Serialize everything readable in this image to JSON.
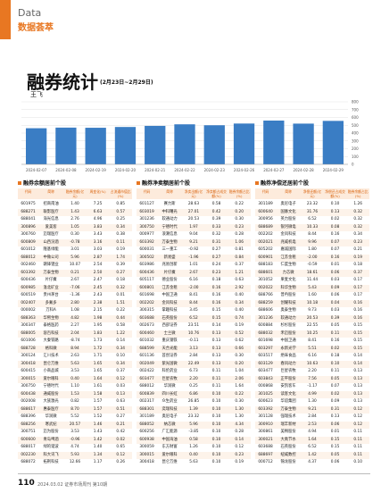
{
  "header": {
    "section": "Data",
    "section_cn": "数据荟萃"
  },
  "article": {
    "title": "融券统计",
    "date_range": "(2月23日~2月29日)",
    "author": "王飞"
  },
  "chart_data": {
    "type": "bar",
    "color": "#3a7dc4",
    "categories": [
      "2024-02-07",
      "2024-02-08",
      "2024-02-19",
      "2024-02-20",
      "2024-02-21",
      "2024-02-22",
      "2024-02-23",
      "2024-02-26",
      "2024-02-27",
      "2024-02-28",
      "2024-02-29"
    ],
    "values": [
      462,
      470,
      468,
      478,
      492,
      512,
      500,
      522,
      560,
      521,
      556
    ],
    "ylim": [
      0,
      800
    ],
    "yticks": [
      0,
      100,
      200,
      300,
      400,
      500,
      600,
      700,
      800
    ],
    "grid": true
  },
  "tables": [
    {
      "title": "融券余额居前个股",
      "headers": [
        "代码",
        "简称",
        "融券余额(亿元)",
        "周变化(%)",
        "占流通市值比(%)"
      ],
      "rows": [
        [
          "601975",
          "招商南油",
          "1.40",
          "7.25",
          "0.85"
        ],
        [
          "688271",
          "联影医疗",
          "1.43",
          "6.63",
          "0.57"
        ],
        [
          "688041",
          "海光信息",
          "2.76",
          "4.96",
          "0.25"
        ],
        [
          "300896",
          "爱美客",
          "1.05",
          "3.83",
          "0.34"
        ],
        [
          "300760",
          "迈瑞医疗",
          "0.30",
          "3.43",
          "0.38"
        ],
        [
          "600809",
          "山西汾酒",
          "-0.78",
          "3.16",
          "0.11"
        ],
        [
          "601012",
          "隆基绿能",
          "3.01",
          "3.03",
          "0.19"
        ],
        [
          "688012",
          "中微公司",
          "5.96",
          "2.87",
          "1.74"
        ],
        [
          "002460",
          "赣锋锂业",
          "10.07",
          "2.54",
          "0.39"
        ],
        [
          "603392",
          "万泰生物",
          "0.21",
          "2.50",
          "0.27"
        ],
        [
          "600436",
          "片仔癀",
          "2.67",
          "2.47",
          "0.18"
        ],
        [
          "600985",
          "淮北矿业",
          "-7.06",
          "2.45",
          "0.32"
        ],
        [
          "600519",
          "贵州茅台",
          "-1.36",
          "2.43",
          "0.01"
        ],
        [
          "002407",
          "多氟多",
          "2.80",
          "2.38",
          "1.51"
        ],
        [
          "000002",
          "万科A",
          "1.08",
          "2.15",
          "0.22"
        ],
        [
          "688363",
          "华熙生物",
          "4.82",
          "1.98",
          "0.44"
        ],
        [
          "300347",
          "泰格医药",
          "2.27",
          "1.95",
          "0.58"
        ],
        [
          "688005",
          "容百科技",
          "2.04",
          "1.83",
          "1.22"
        ],
        [
          "601006",
          "大秦铁路",
          "-8.74",
          "1.73",
          "0.14"
        ],
        [
          "688728",
          "格科微",
          "8.94",
          "1.72",
          "0.34"
        ],
        [
          "300124",
          "汇川技术",
          "2.63",
          "1.71",
          "0.10"
        ],
        [
          "300418",
          "昆仑万维",
          "5.63",
          "1.65",
          "0.34"
        ],
        [
          "600415",
          "小商品城",
          "3.53",
          "1.65",
          "0.37"
        ],
        [
          "300015",
          "爱尔眼科",
          "0.40",
          "1.64",
          "0.12"
        ],
        [
          "300750",
          "宁德时代",
          "1.10",
          "1.61",
          "0.03"
        ],
        [
          "600438",
          "通威股份",
          "1.53",
          "1.58",
          "0.13"
        ],
        [
          "002008",
          "大族激光",
          "0.82",
          "1.57",
          "0.63"
        ],
        [
          "688617",
          "惠泰医疗",
          "8.70",
          "1.57",
          "0.51"
        ],
        [
          "688396",
          "华润微",
          "5.52",
          "1.52",
          "0.27"
        ],
        [
          "688256",
          "寒武纪",
          "20.57",
          "1.46",
          "0.21"
        ],
        [
          "300751",
          "迈为股份",
          "3.53",
          "1.43",
          "0.42"
        ],
        [
          "600600",
          "青岛啤酒",
          "-0.96",
          "1.42",
          "0.02"
        ],
        [
          "688017",
          "绿的谐波",
          "4.74",
          "1.40",
          "0.65"
        ],
        [
          "002230",
          "科大讯飞",
          "5.93",
          "1.34",
          "0.12"
        ],
        [
          "688072",
          "拓荆科技",
          "12.66",
          "1.17",
          "0.26"
        ]
      ]
    },
    {
      "title": "融券净卖额居前个股",
      "headers": [
        "代码",
        "简称",
        "净卖出额(亿元)",
        "净卖额占成交额(%)",
        "融券余额占比(%)"
      ],
      "rows": [
        [
          "601127",
          "赛力斯",
          "28.63",
          "0.58",
          "0.22"
        ],
        [
          "603019",
          "中科曙光",
          "27.01",
          "0.42",
          "0.20"
        ],
        [
          "301236",
          "软通动力",
          "20.53",
          "0.39",
          "0.30"
        ],
        [
          "300750",
          "宁德时代",
          "1.97",
          "0.33",
          "0.23"
        ],
        [
          "000977",
          "浪潮信息",
          "9.04",
          "0.32",
          "0.28"
        ],
        [
          "603392",
          "万泰生物",
          "9.21",
          "0.31",
          "1.06"
        ],
        [
          "600031",
          "三一重工",
          "-0.92",
          "0.27",
          "0.81"
        ],
        [
          "300502",
          "新易盛",
          "-1.96",
          "0.27",
          "0.84"
        ],
        [
          "603986",
          "兆易创新",
          "1.01",
          "0.24",
          "0.37"
        ],
        [
          "600436",
          "片仔癀",
          "2.67",
          "0.23",
          "1.21"
        ],
        [
          "605117",
          "德业股份",
          "6.16",
          "0.18",
          "0.63"
        ],
        [
          "600801",
          "江苏金租",
          "-2.00",
          "0.16",
          "2.92"
        ],
        [
          "601698",
          "中国卫通",
          "8.41",
          "0.16",
          "0.40"
        ],
        [
          "002202",
          "金风科技",
          "8.44",
          "0.16",
          "0.34"
        ],
        [
          "300315",
          "掌趣科技",
          "3.45",
          "0.15",
          "0.40"
        ],
        [
          "603688",
          "石英股份",
          "6.52",
          "0.15",
          "0.74"
        ],
        [
          "002673",
          "西部证券",
          "23.51",
          "0.14",
          "0.19"
        ],
        [
          "600460",
          "士兰微",
          "10.76",
          "0.13",
          "0.52"
        ],
        [
          "601032",
          "重庆钢铁",
          "-0.11",
          "0.13",
          "0.62"
        ],
        [
          "688599",
          "天合光能",
          "3.13",
          "0.13",
          "0.66"
        ],
        [
          "601136",
          "首创证券",
          "2.84",
          "0.13",
          "0.30"
        ],
        [
          "002049",
          "紫光国微",
          "22.49",
          "0.13",
          "0.20"
        ],
        [
          "002422",
          "科伦药业",
          "6.73",
          "0.11",
          "1.04"
        ],
        [
          "603477",
          "巨星农牧",
          "2.20",
          "0.11",
          "2.06"
        ],
        [
          "688012",
          "华润微",
          "0.25",
          "0.11",
          "1.64"
        ],
        [
          "600839",
          "四川长虹",
          "6.86",
          "0.10",
          "0.22"
        ],
        [
          "002317",
          "众生药业",
          "26.85",
          "0.10",
          "0.30"
        ],
        [
          "688301",
          "奕瑞科技",
          "1.39",
          "0.10",
          "1.30"
        ],
        [
          "301189",
          "奥尼电子",
          "23.32",
          "0.10",
          "1.30"
        ],
        [
          "688052",
          "纳芯微",
          "5.96",
          "0.10",
          "4.34"
        ],
        [
          "600256",
          "广汇能源",
          "-3.85",
          "0.10",
          "0.28"
        ],
        [
          "600938",
          "中国海油",
          "0.58",
          "0.10",
          "0.14"
        ],
        [
          "300059",
          "东方财富",
          "1.26",
          "0.10",
          "0.12"
        ],
        [
          "300015",
          "爱尔眼科",
          "0.40",
          "0.10",
          "0.23"
        ],
        [
          "300418",
          "昆仑万维",
          "5.63",
          "0.10",
          "0.19"
        ]
      ]
    },
    {
      "title": "融券净偿还居前个股",
      "headers": [
        "代码",
        "简称",
        "净偿还额(亿元)",
        "净偿还占成交额(%)",
        "融券余额占比(%)"
      ],
      "rows": [
        [
          "301189",
          "奥尼电子",
          "23.32",
          "0.10",
          "1.26"
        ],
        [
          "600640",
          "国脉文化",
          "31.76",
          "0.13",
          "0.32"
        ],
        [
          "300956",
          "英力股份",
          "6.52",
          "0.02",
          "0.32"
        ],
        [
          "688689",
          "银河微电",
          "10.33",
          "0.08",
          "0.32"
        ],
        [
          "002202",
          "金风科技",
          "8.44",
          "0.16",
          "0.34"
        ],
        [
          "002021",
          "兆威机电",
          "9.96",
          "0.07",
          "0.23"
        ],
        [
          "605202",
          "嘉诚国际",
          "1.80",
          "0.07",
          "0.21"
        ],
        [
          "600901",
          "江苏金租",
          "-2.00",
          "0.16",
          "0.19"
        ],
        [
          "688183",
          "仁度生物",
          "-0.59",
          "0.01",
          "0.18"
        ],
        [
          "688601",
          "力芯微",
          "18.61",
          "0.06",
          "0.37"
        ],
        [
          "301052",
          "果麦文化",
          "11.44",
          "0.03",
          "0.17"
        ],
        [
          "002022",
          "科华生物",
          "5.43",
          "0.09",
          "0.17"
        ],
        [
          "688766",
          "普冉股份",
          "1.60",
          "0.06",
          "0.17"
        ],
        [
          "688259",
          "创耀科技",
          "10.18",
          "0.04",
          "0.16"
        ],
        [
          "688606",
          "奥泰生物",
          "9.73",
          "0.03",
          "0.16"
        ],
        [
          "301236",
          "软通动力",
          "20.53",
          "0.39",
          "0.16"
        ],
        [
          "600884",
          "杉杉股份",
          "22.55",
          "0.05",
          "0.15"
        ],
        [
          "688032",
          "禾迈股份",
          "10.25",
          "0.11",
          "0.15"
        ],
        [
          "601698",
          "中国卫通",
          "8.41",
          "0.16",
          "0.15"
        ],
        [
          "603297",
          "永新光学",
          "5.51",
          "0.02",
          "0.15"
        ],
        [
          "603517",
          "绝味食品",
          "6.16",
          "0.18",
          "0.14"
        ],
        [
          "603129",
          "春风动力",
          "10.63",
          "0.10",
          "0.14"
        ],
        [
          "603477",
          "巨星农牧",
          "2.20",
          "0.11",
          "0.13"
        ],
        [
          "603843",
          "正平股份",
          "7.56",
          "0.05",
          "0.13"
        ],
        [
          "000868",
          "安凯客车",
          "-1.17",
          "0.07",
          "0.13"
        ],
        [
          "301025",
          "读客文化",
          "4.99",
          "0.02",
          "0.13"
        ],
        [
          "600623",
          "华谊集团",
          "1.30",
          "0.09",
          "0.13"
        ],
        [
          "603392",
          "万泰生物",
          "9.21",
          "0.31",
          "0.12"
        ],
        [
          "301128",
          "强瑞技术",
          "2.84",
          "0.13",
          "0.12"
        ],
        [
          "300910",
          "瑞丰新材",
          "2.53",
          "0.06",
          "0.12"
        ],
        [
          "300861",
          "美畅股份",
          "4.94",
          "0.01",
          "0.11"
        ],
        [
          "300021",
          "大禹节水",
          "1.64",
          "0.15",
          "0.11"
        ],
        [
          "603688",
          "石英股份",
          "6.52",
          "0.15",
          "0.11"
        ],
        [
          "688697",
          "纽威数控",
          "1.42",
          "0.05",
          "0.11"
        ],
        [
          "000712",
          "锦龙股份",
          "4.37",
          "0.06",
          "0.10"
        ]
      ]
    }
  ],
  "footer": {
    "page": "110",
    "issue": "2024.03.02 证券市场周刊 第10期"
  }
}
